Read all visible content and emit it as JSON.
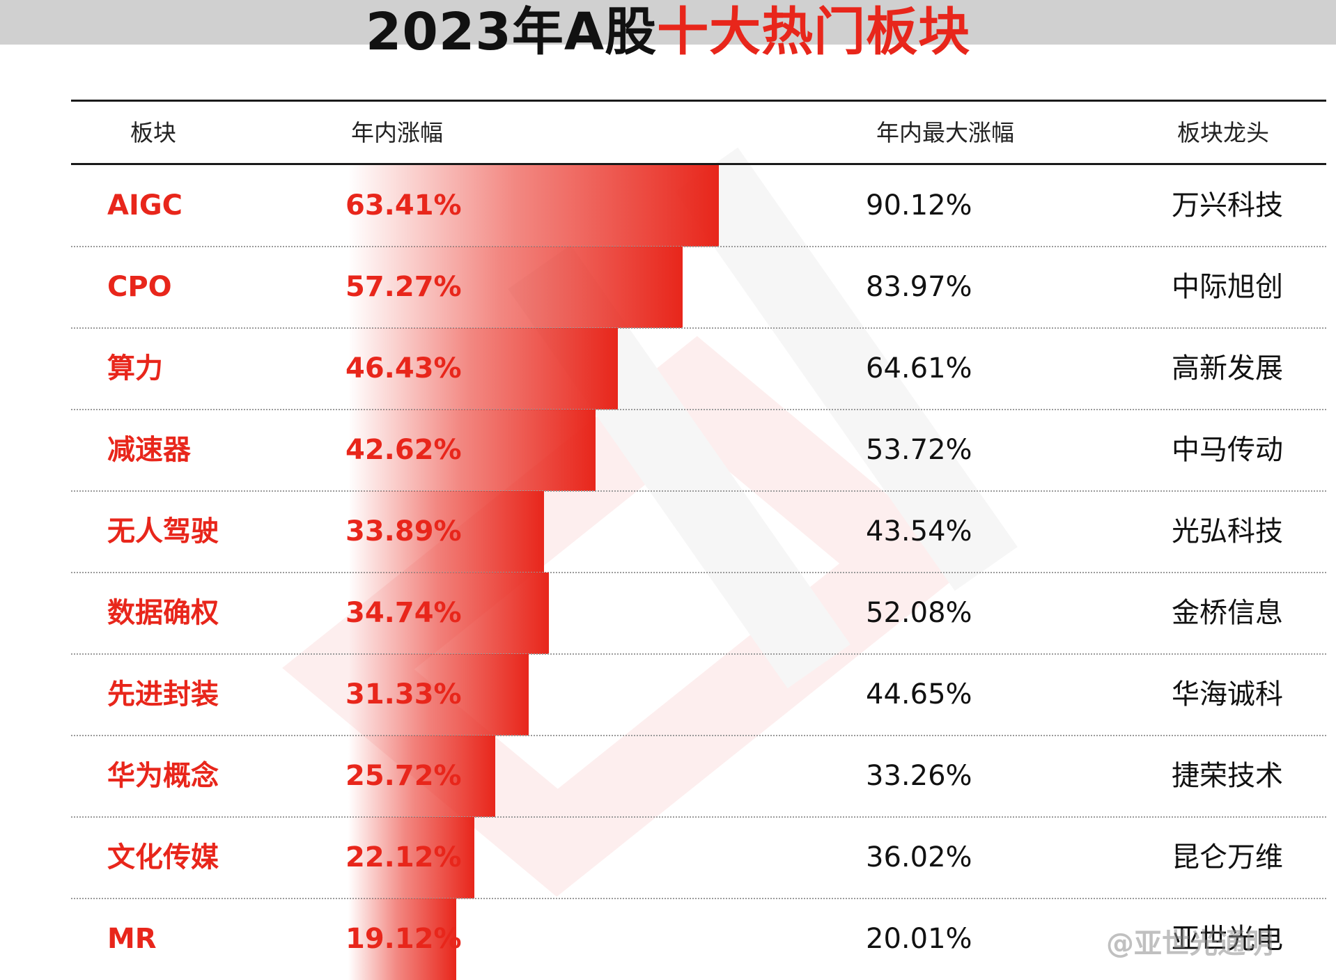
{
  "title": {
    "part1": "2023年A股",
    "part2": "十大热门板块"
  },
  "headers": {
    "sector": "板块",
    "gain": "年内涨幅",
    "max_gain": "年内最大涨幅",
    "leader": "板块龙头"
  },
  "chart_data": {
    "type": "table",
    "title": "2023年A股十大热门板块",
    "columns": [
      "板块",
      "年内涨幅",
      "年内最大涨幅",
      "板块龙头"
    ],
    "bar_column": "年内涨幅",
    "rows": [
      {
        "sector": "AIGC",
        "gain": 63.41,
        "gain_label": "63.41%",
        "max_gain_label": "90.12%",
        "leader": "万兴科技"
      },
      {
        "sector": "CPO",
        "gain": 57.27,
        "gain_label": "57.27%",
        "max_gain_label": "83.97%",
        "leader": "中际旭创"
      },
      {
        "sector": "算力",
        "gain": 46.43,
        "gain_label": "46.43%",
        "max_gain_label": "64.61%",
        "leader": "高新发展"
      },
      {
        "sector": "减速器",
        "gain": 42.62,
        "gain_label": "42.62%",
        "max_gain_label": "53.72%",
        "leader": "中马传动"
      },
      {
        "sector": "无人驾驶",
        "gain": 33.89,
        "gain_label": "33.89%",
        "max_gain_label": "43.54%",
        "leader": "光弘科技"
      },
      {
        "sector": "数据确权",
        "gain": 34.74,
        "gain_label": "34.74%",
        "max_gain_label": "52.08%",
        "leader": "金桥信息"
      },
      {
        "sector": "先进封装",
        "gain": 31.33,
        "gain_label": "31.33%",
        "max_gain_label": "44.65%",
        "leader": "华海诚科"
      },
      {
        "sector": "华为概念",
        "gain": 25.72,
        "gain_label": "25.72%",
        "max_gain_label": "33.26%",
        "leader": "捷荣技术"
      },
      {
        "sector": "文化传媒",
        "gain": 22.12,
        "gain_label": "22.12%",
        "max_gain_label": "36.02%",
        "leader": "昆仑万维"
      },
      {
        "sector": "MR",
        "gain": 19.12,
        "gain_label": "19.12%",
        "max_gain_label": "20.01%",
        "leader": "亚世光电"
      }
    ]
  },
  "colors": {
    "accent": "#e8261b",
    "text": "#111111"
  },
  "weibo_mark": "@亚世光通明"
}
